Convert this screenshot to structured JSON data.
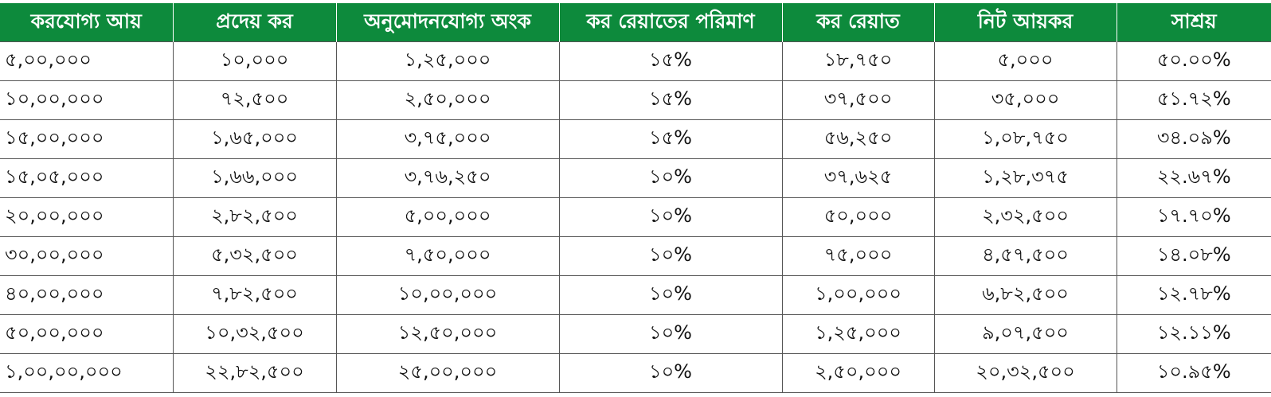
{
  "colors": {
    "header_background": "#0d8a3c",
    "header_text": "#ffffff",
    "cell_text": "#111111",
    "grid_lines": "#555555"
  },
  "table": {
    "headers": [
      "করযোগ্য আয়",
      "প্রদেয় কর",
      "অনুমোদনযোগ্য অংক",
      "কর রেয়াতের পরিমাণ",
      "কর রেয়াত",
      "নিট আয়কর",
      "সাশ্রয়"
    ],
    "rows": [
      [
        "৫,০০,০০০",
        "১০,০০০",
        "১,২৫,০০০",
        "১৫%",
        "১৮,৭৫০",
        "৫,০০০",
        "৫০.০০%"
      ],
      [
        "১০,০০,০০০",
        "৭২,৫০০",
        "২,৫০,০০০",
        "১৫%",
        "৩৭,৫০০",
        "৩৫,০০০",
        "৫১.৭২%"
      ],
      [
        "১৫,০০,০০০",
        "১,৬৫,০০০",
        "৩,৭৫,০০০",
        "১৫%",
        "৫৬,২৫০",
        "১,০৮,৭৫০",
        "৩৪.০৯%"
      ],
      [
        "১৫,০৫,০০০",
        "১,৬৬,০০০",
        "৩,৭৬,২৫০",
        "১০%",
        "৩৭,৬২৫",
        "১,২৮,৩৭৫",
        "২২.৬৭%"
      ],
      [
        "২০,০০,০০০",
        "২,৮২,৫০০",
        "৫,০০,০০০",
        "১০%",
        "৫০,০০০",
        "২,৩২,৫০০",
        "১৭.৭০%"
      ],
      [
        "৩০,০০,০০০",
        "৫,৩২,৫০০",
        "৭,৫০,০০০",
        "১০%",
        "৭৫,০০০",
        "৪,৫৭,৫০০",
        "১৪.০৮%"
      ],
      [
        "৪০,০০,০০০",
        "৭,৮২,৫০০",
        "১০,০০,০০০",
        "১০%",
        "১,০০,০০০",
        "৬,৮২,৫০০",
        "১২.৭৮%"
      ],
      [
        "৫০,০০,০০০",
        "১০,৩২,৫০০",
        "১২,৫০,০০০",
        "১০%",
        "১,২৫,০০০",
        "৯,০৭,৫০০",
        "১২.১১%"
      ],
      [
        "১,০০,০০,০০০",
        "২২,৮২,৫০০",
        "২৫,০০,০০০",
        "১০%",
        "২,৫০,০০০",
        "২০,৩২,৫০০",
        "১০.৯৫%"
      ]
    ]
  }
}
